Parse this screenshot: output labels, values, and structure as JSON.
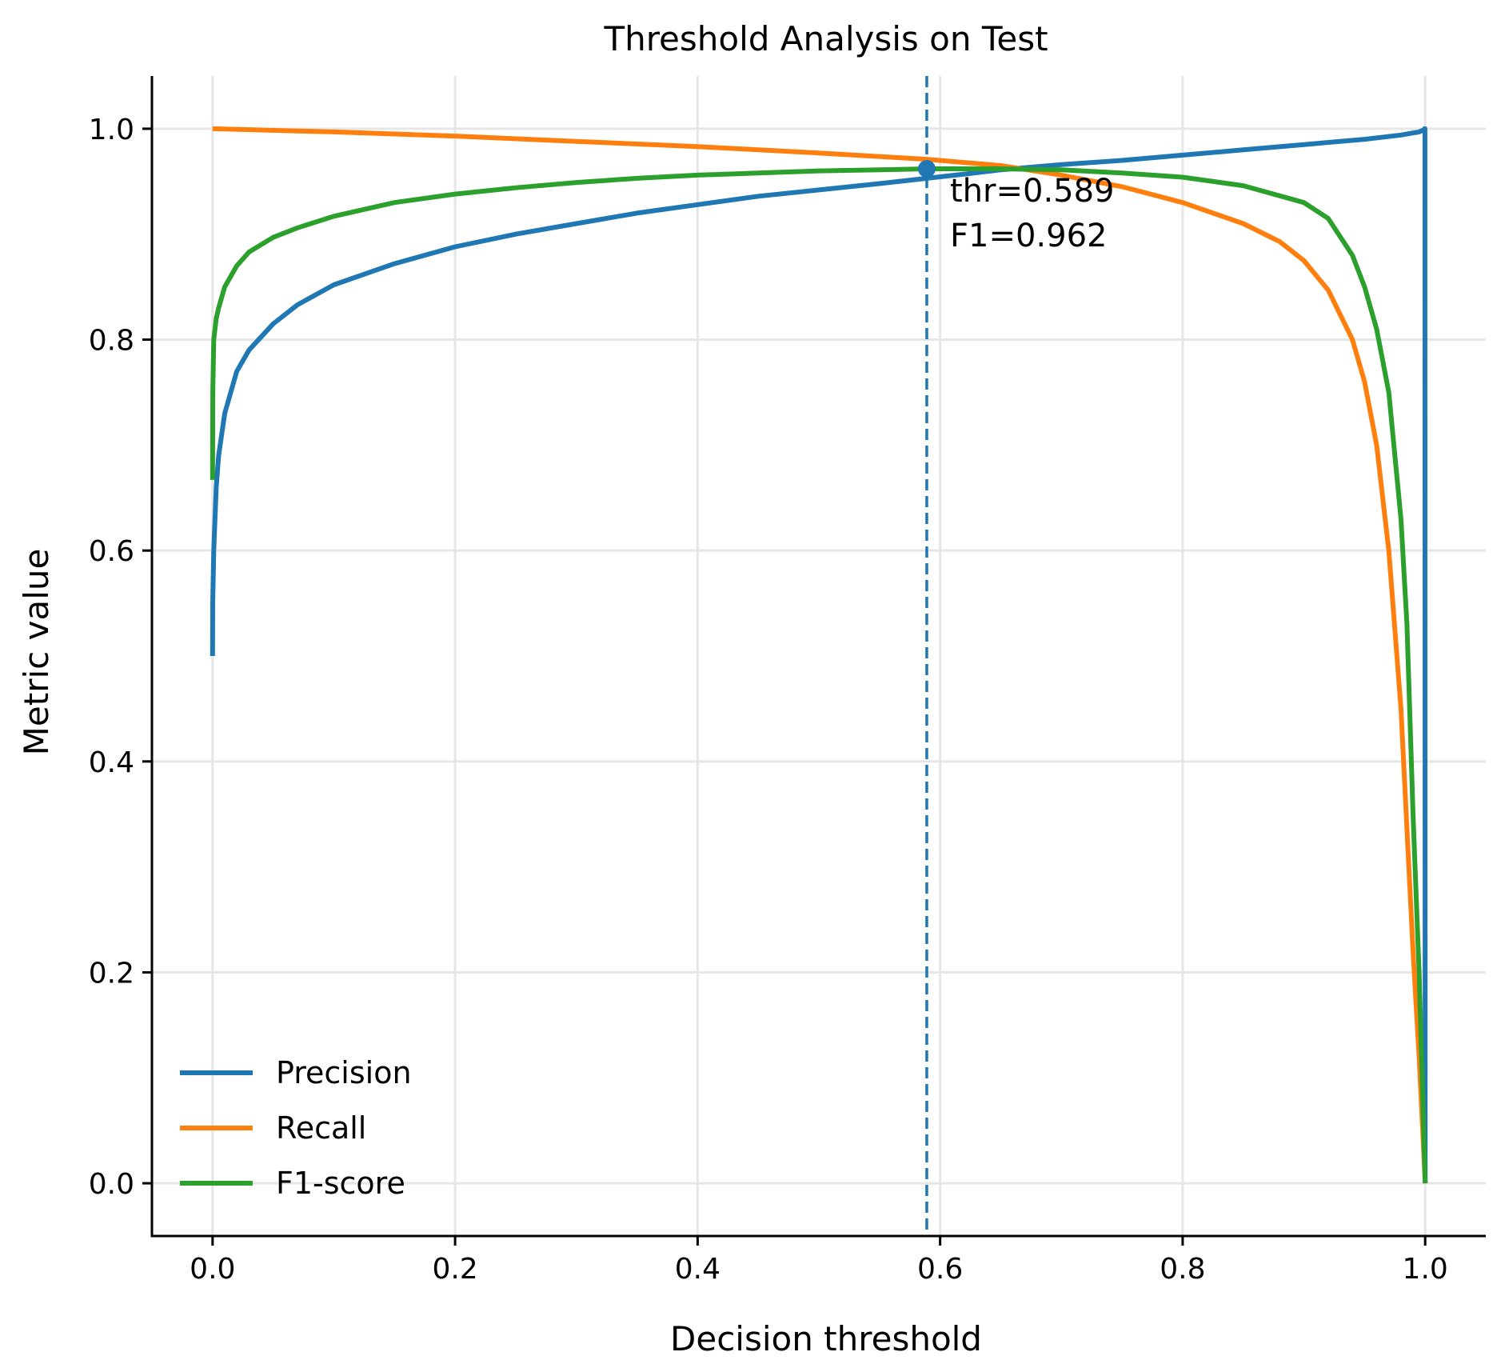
{
  "chart_data": {
    "type": "line",
    "title": "Threshold Analysis on Test",
    "xlabel": "Decision threshold",
    "ylabel": "Metric value",
    "xlim": [
      -0.05,
      1.05
    ],
    "ylim": [
      -0.05,
      1.05
    ],
    "grid": true,
    "x_ticks": [
      0.0,
      0.2,
      0.4,
      0.6,
      0.8,
      1.0
    ],
    "x_tick_labels": [
      "0.0",
      "0.2",
      "0.4",
      "0.6",
      "0.8",
      "1.0"
    ],
    "y_ticks": [
      0.0,
      0.2,
      0.4,
      0.6,
      0.8,
      1.0
    ],
    "y_tick_labels": [
      "0.0",
      "0.2",
      "0.4",
      "0.6",
      "0.8",
      "1.0"
    ],
    "legend_position": "lower-left",
    "series": [
      {
        "name": "Precision",
        "color": "#1f77b4",
        "x": [
          0.0,
          0.0001,
          0.001,
          0.003,
          0.005,
          0.01,
          0.02,
          0.03,
          0.05,
          0.07,
          0.1,
          0.15,
          0.2,
          0.25,
          0.3,
          0.35,
          0.4,
          0.45,
          0.5,
          0.55,
          0.589,
          0.62,
          0.65,
          0.7,
          0.75,
          0.8,
          0.85,
          0.9,
          0.95,
          0.98,
          0.99,
          0.995,
          0.999,
          0.9995,
          0.9998,
          0.9999,
          1.0
        ],
        "values": [
          0.5,
          0.55,
          0.6,
          0.66,
          0.69,
          0.73,
          0.77,
          0.79,
          0.815,
          0.833,
          0.852,
          0.872,
          0.888,
          0.9,
          0.91,
          0.92,
          0.928,
          0.936,
          0.942,
          0.948,
          0.953,
          0.957,
          0.961,
          0.966,
          0.97,
          0.975,
          0.98,
          0.985,
          0.99,
          0.994,
          0.996,
          0.997,
          0.999,
          1.0,
          1.0,
          0.5,
          0.0
        ]
      },
      {
        "name": "Recall",
        "color": "#ff7f0e",
        "x": [
          0.0,
          0.1,
          0.2,
          0.3,
          0.4,
          0.5,
          0.589,
          0.65,
          0.7,
          0.75,
          0.8,
          0.85,
          0.88,
          0.9,
          0.92,
          0.94,
          0.95,
          0.96,
          0.97,
          0.98,
          0.99,
          0.995,
          0.998,
          1.0
        ],
        "values": [
          1.0,
          0.997,
          0.993,
          0.988,
          0.983,
          0.977,
          0.971,
          0.965,
          0.956,
          0.945,
          0.93,
          0.91,
          0.893,
          0.875,
          0.847,
          0.8,
          0.76,
          0.7,
          0.6,
          0.45,
          0.22,
          0.12,
          0.05,
          0.0
        ]
      },
      {
        "name": "F1-score",
        "color": "#2ca02c",
        "x": [
          0.0,
          0.0002,
          0.001,
          0.003,
          0.005,
          0.01,
          0.02,
          0.03,
          0.05,
          0.07,
          0.1,
          0.15,
          0.2,
          0.25,
          0.3,
          0.35,
          0.4,
          0.45,
          0.5,
          0.55,
          0.589,
          0.65,
          0.7,
          0.75,
          0.8,
          0.85,
          0.9,
          0.92,
          0.94,
          0.95,
          0.96,
          0.97,
          0.98,
          0.985,
          0.99,
          0.995,
          1.0
        ],
        "values": [
          0.667,
          0.75,
          0.8,
          0.82,
          0.83,
          0.85,
          0.87,
          0.883,
          0.897,
          0.906,
          0.917,
          0.93,
          0.938,
          0.944,
          0.949,
          0.953,
          0.956,
          0.958,
          0.96,
          0.961,
          0.962,
          0.962,
          0.961,
          0.958,
          0.954,
          0.946,
          0.93,
          0.915,
          0.88,
          0.85,
          0.81,
          0.75,
          0.63,
          0.53,
          0.35,
          0.2,
          0.0
        ]
      }
    ],
    "vline": {
      "x": 0.589,
      "color": "#1f77b4",
      "style": "dashed"
    },
    "marker": {
      "x": 0.589,
      "y": 0.962,
      "color": "#1f77b4"
    },
    "annotation": {
      "x": 0.589,
      "y": 0.962,
      "lines": [
        "thr=0.589",
        "F1=0.962"
      ]
    }
  }
}
